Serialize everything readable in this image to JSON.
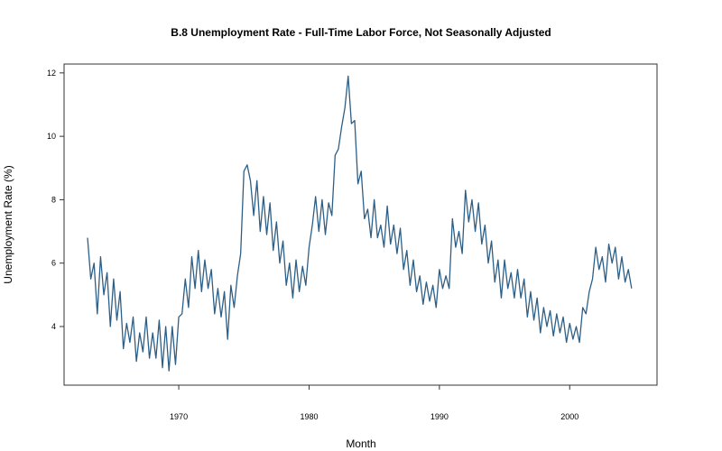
{
  "chart_data": {
    "type": "line",
    "title": "B.8  Unemployment Rate - Full-Time Labor Force, Not Seasonally Adjusted",
    "x_label": "Month",
    "y_label": "Unemployment Rate (%)",
    "xlim": [
      1961.2,
      2006.7
    ],
    "ylim": [
      2.15,
      12.28
    ],
    "xticks": [
      1970,
      1980,
      1990,
      2000
    ],
    "yticks": [
      4,
      6,
      8,
      10,
      12
    ],
    "x": [
      1963,
      1963.25,
      1963.5,
      1963.75,
      1964,
      1964.25,
      1964.5,
      1964.75,
      1965,
      1965.25,
      1965.5,
      1965.75,
      1966,
      1966.25,
      1966.5,
      1966.75,
      1967,
      1967.25,
      1967.5,
      1967.75,
      1968,
      1968.25,
      1968.5,
      1968.75,
      1969,
      1969.25,
      1969.5,
      1969.75,
      1970,
      1970.25,
      1970.5,
      1970.75,
      1971,
      1971.25,
      1971.5,
      1971.75,
      1972,
      1972.25,
      1972.5,
      1972.75,
      1973,
      1973.25,
      1973.5,
      1973.75,
      1974,
      1974.25,
      1974.5,
      1974.75,
      1975,
      1975.25,
      1975.5,
      1975.75,
      1976,
      1976.25,
      1976.5,
      1976.75,
      1977,
      1977.25,
      1977.5,
      1977.75,
      1978,
      1978.25,
      1978.5,
      1978.75,
      1979,
      1979.25,
      1979.5,
      1979.75,
      1980,
      1980.25,
      1980.5,
      1980.75,
      1981,
      1981.25,
      1981.5,
      1981.75,
      1982,
      1982.25,
      1982.5,
      1982.75,
      1983,
      1983.25,
      1983.5,
      1983.75,
      1984,
      1984.25,
      1984.5,
      1984.75,
      1985,
      1985.25,
      1985.5,
      1985.75,
      1986,
      1986.25,
      1986.5,
      1986.75,
      1987,
      1987.25,
      1987.5,
      1987.75,
      1988,
      1988.25,
      1988.5,
      1988.75,
      1989,
      1989.25,
      1989.5,
      1989.75,
      1990,
      1990.25,
      1990.5,
      1990.75,
      1991,
      1991.25,
      1991.5,
      1991.75,
      1992,
      1992.25,
      1992.5,
      1992.75,
      1993,
      1993.25,
      1993.5,
      1993.75,
      1994,
      1994.25,
      1994.5,
      1994.75,
      1995,
      1995.25,
      1995.5,
      1995.75,
      1996,
      1996.25,
      1996.5,
      1996.75,
      1997,
      1997.25,
      1997.5,
      1997.75,
      1998,
      1998.25,
      1998.5,
      1998.75,
      1999,
      1999.25,
      1999.5,
      1999.75,
      2000,
      2000.25,
      2000.5,
      2000.75,
      2001,
      2001.25,
      2001.5,
      2001.75,
      2002,
      2002.25,
      2002.5,
      2002.75,
      2003,
      2003.25,
      2003.5,
      2003.75,
      2004,
      2004.25,
      2004.5,
      2004.75
    ],
    "series": [
      {
        "color": "#2d5f86",
        "values": [
          6.8,
          5.5,
          6.0,
          4.4,
          6.2,
          5.0,
          5.7,
          4.0,
          5.5,
          4.2,
          5.1,
          3.3,
          4.1,
          3.5,
          4.3,
          2.9,
          3.8,
          3.2,
          4.3,
          3.0,
          3.8,
          3.0,
          4.2,
          2.7,
          4.0,
          2.6,
          4.0,
          2.8,
          4.3,
          4.4,
          5.5,
          4.6,
          6.2,
          5.2,
          6.4,
          5.1,
          6.1,
          5.2,
          5.8,
          4.4,
          5.2,
          4.3,
          5.1,
          3.6,
          5.3,
          4.6,
          5.6,
          6.3,
          8.9,
          9.1,
          8.6,
          7.5,
          8.6,
          7.0,
          8.1,
          6.9,
          7.9,
          6.4,
          7.3,
          6.0,
          6.7,
          5.3,
          6.0,
          4.9,
          6.1,
          5.1,
          5.9,
          5.3,
          6.5,
          7.2,
          8.1,
          7.0,
          8.0,
          6.9,
          7.9,
          7.5,
          9.4,
          9.6,
          10.3,
          10.9,
          11.9,
          10.4,
          10.5,
          8.5,
          8.9,
          7.4,
          7.7,
          6.8,
          8.0,
          6.8,
          7.2,
          6.5,
          7.8,
          6.6,
          7.2,
          6.3,
          7.1,
          5.8,
          6.4,
          5.3,
          6.1,
          5.1,
          5.6,
          4.7,
          5.4,
          4.8,
          5.3,
          4.6,
          5.8,
          5.2,
          5.6,
          5.2,
          7.4,
          6.5,
          7.0,
          6.3,
          8.3,
          7.3,
          8.0,
          7.0,
          7.9,
          6.6,
          7.2,
          6.0,
          6.7,
          5.4,
          6.1,
          4.9,
          6.1,
          5.2,
          5.7,
          4.9,
          5.8,
          4.9,
          5.5,
          4.3,
          5.1,
          4.2,
          4.9,
          3.8,
          4.6,
          4.0,
          4.5,
          3.7,
          4.4,
          3.8,
          4.3,
          3.5,
          4.1,
          3.6,
          4.0,
          3.5,
          4.6,
          4.4,
          5.1,
          5.5,
          6.5,
          5.8,
          6.2,
          5.4,
          6.6,
          6.0,
          6.5,
          5.5,
          6.2,
          5.4,
          5.8,
          5.2
        ]
      }
    ]
  }
}
